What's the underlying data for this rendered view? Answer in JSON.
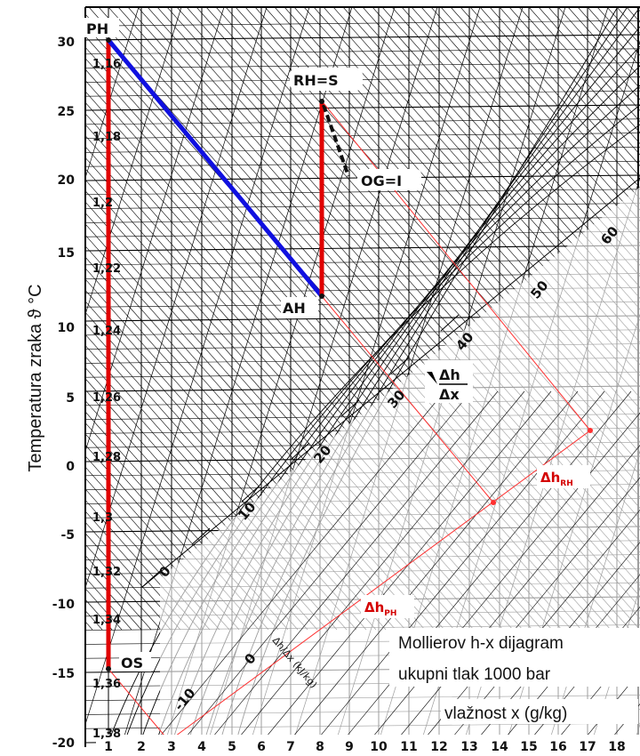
{
  "y_axis": {
    "label": "Temperatura zraka ϑ °C",
    "ticks": [
      "30",
      "25",
      "20",
      "15",
      "10",
      "5",
      "0",
      "-5",
      "-10",
      "-15",
      "-20"
    ]
  },
  "x_axis": {
    "label": "vlažnost x (g/kg)",
    "ticks": [
      "1",
      "2",
      "3",
      "4",
      "5",
      "6",
      "7",
      "8",
      "9",
      "10",
      "11",
      "12",
      "13",
      "14",
      "15",
      "16",
      "17",
      "18"
    ]
  },
  "density_labels": [
    "1,16",
    "1,18",
    "1,2",
    "1,22",
    "1,24",
    "1,26",
    "1,28",
    "1,3",
    "1,32",
    "1,34",
    "1,36",
    "1,38"
  ],
  "enthalpy_labels": [
    "-10",
    "0",
    "0",
    "10",
    "20",
    "30",
    "40",
    "50",
    "60"
  ],
  "points": {
    "ph": "PH",
    "rh_s": "RH=S",
    "og_i": "OG=I",
    "ah": "AH",
    "os": "OS"
  },
  "delta_labels": {
    "rh": {
      "main": "Δh",
      "sub": "RH"
    },
    "ph": {
      "main": "Δh",
      "sub": "PH"
    }
  },
  "scale_fraction": {
    "num": "Δh",
    "den": "Δx"
  },
  "scale_small_label": "Δh/Δx (kJ/kg)",
  "caption": {
    "line1": "Mollierov h-x dijagram",
    "line2": "ukupni tlak 1000 bar"
  },
  "colors": {
    "process_red": "#e00000",
    "process_blue": "#1010e0",
    "construction_red": "#ff3030",
    "grid": "#000000"
  }
}
